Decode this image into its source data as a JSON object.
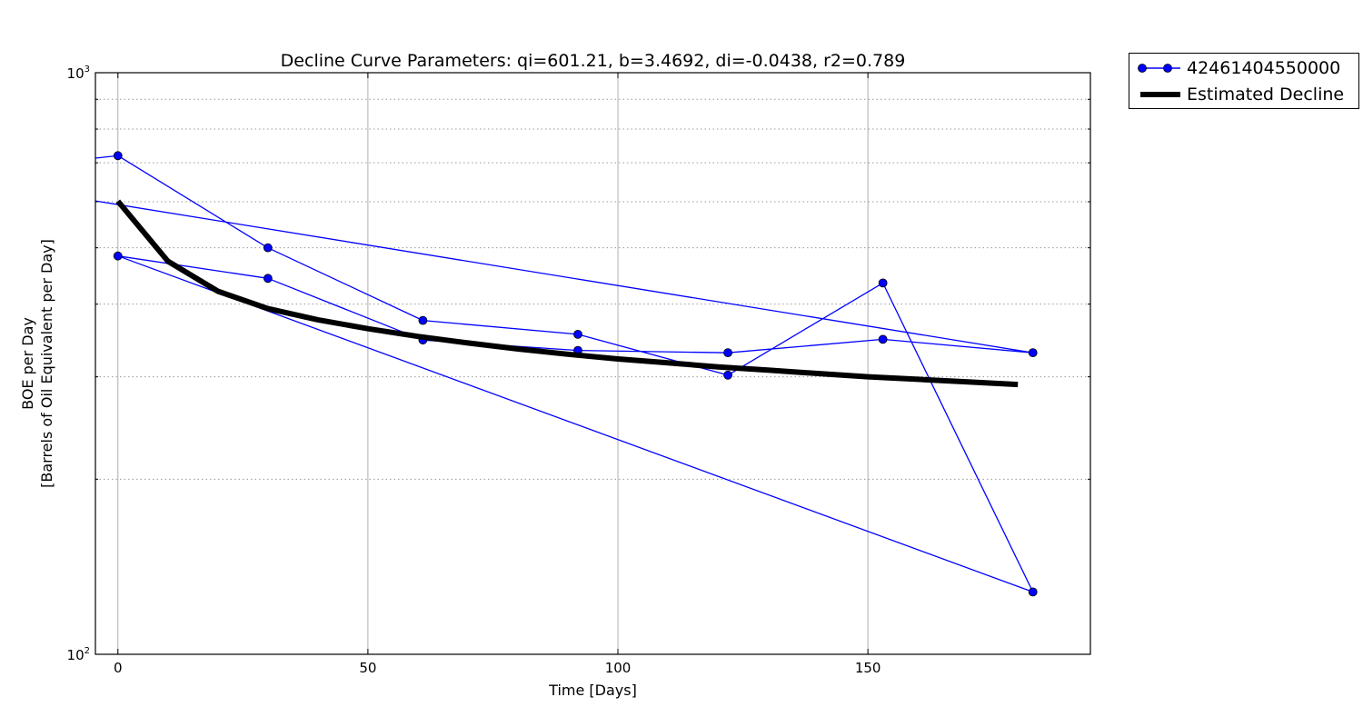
{
  "chart_data": {
    "type": "line",
    "title": "Decline Curve Parameters: qi=601.21, b=3.4692, di=-0.0438, r2=0.789",
    "xlabel": "Time [Days]",
    "ylabel": "BOE per Day",
    "ylabel_line2": "[Barrels of Oil Equivalent per Day]",
    "xlim": [
      -4.5,
      194.5
    ],
    "ylim": [
      100,
      1000
    ],
    "yscale": "log",
    "x_ticks": [
      0,
      50,
      100,
      150
    ],
    "x_tick_labels": [
      "0",
      "50",
      "100",
      "150"
    ],
    "y_tick_labels": [
      {
        "base": "10",
        "exp": "2",
        "value": 100
      },
      {
        "base": "10",
        "exp": "3",
        "value": 1000
      }
    ],
    "y_minor_ticks": [
      200,
      300,
      400,
      500,
      600,
      700,
      800,
      900
    ],
    "grid": true,
    "legend_position": "outside-top-right",
    "series": [
      {
        "name": "42461404550000",
        "color": "#0000ff",
        "marker": "circle",
        "x": [
          -4.5,
          0,
          30,
          61,
          92,
          122,
          153,
          183,
          0,
          30,
          61,
          92,
          122,
          153,
          183,
          -4.5
        ],
        "y": [
          713,
          720,
          500,
          375,
          355,
          302,
          435,
          128,
          484,
          443,
          347,
          333,
          330,
          348,
          330,
          602
        ]
      },
      {
        "name": "Estimated Decline",
        "color": "#000000",
        "linewidth": 6,
        "x": [
          0,
          10,
          20,
          30,
          40,
          50,
          60,
          70,
          80,
          90,
          100,
          110,
          120,
          130,
          140,
          150,
          160,
          170,
          180
        ],
        "y": [
          601.21,
          474,
          421,
          393,
          376,
          363,
          352,
          343,
          335,
          328,
          322,
          317,
          312,
          308,
          304,
          300,
          297,
          294,
          291
        ]
      }
    ]
  },
  "legend": {
    "items": [
      {
        "label": "42461404550000"
      },
      {
        "label": "Estimated Decline"
      }
    ]
  }
}
